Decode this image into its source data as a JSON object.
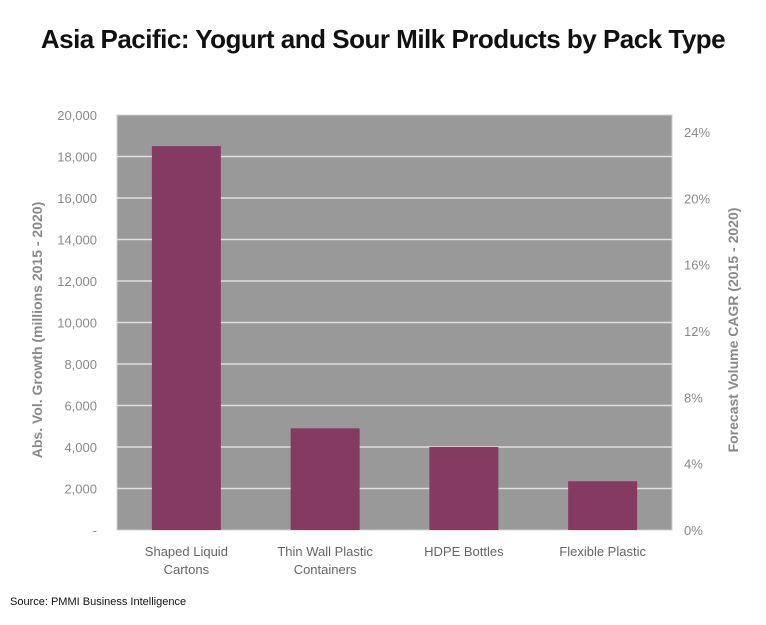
{
  "chart_data": {
    "type": "bar",
    "title": "Asia Pacific: Yogurt and Sour Milk Products by Pack Type",
    "categories": [
      [
        "Shaped Liquid",
        "Cartons"
      ],
      [
        "Thin Wall Plastic",
        "Containers"
      ],
      [
        "HDPE Bottles"
      ],
      [
        "Flexible Plastic"
      ]
    ],
    "values": [
      18500,
      4900,
      4000,
      2350
    ],
    "ylabel": "Abs. Vol. Growth (millions 2015 - 2020)",
    "y2label": "Forecast Volume CAGR (2015 - 2020)",
    "ylim": [
      0,
      20000
    ],
    "y_ticks": [
      "-",
      "2,000",
      "4,000",
      "6,000",
      "8,000",
      "10,000",
      "12,000",
      "14,000",
      "16,000",
      "18,000",
      "20,000"
    ],
    "y2lim": [
      0,
      24
    ],
    "y2_ticks": [
      "0%",
      "4%",
      "8%",
      "12%",
      "16%",
      "20%",
      "24%"
    ],
    "grid": true,
    "colors": {
      "bar": "#853b61",
      "plot_bg": "#999999",
      "grid": "#e0e0e0"
    }
  },
  "source": "Source: PMMI Business Intelligence"
}
